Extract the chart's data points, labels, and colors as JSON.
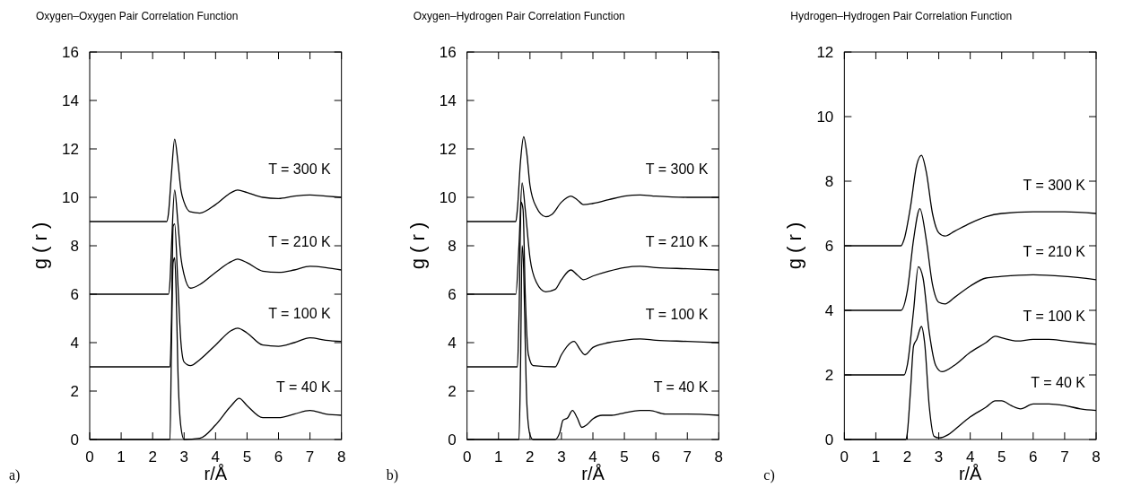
{
  "chart_data": [
    {
      "type": "line",
      "legend": "right",
      "title": "Oxygen–Oxygen Pair Correlation Function",
      "xlabel": "r/Å",
      "ylabel": "g ( r )",
      "annotations": [
        "a)"
      ],
      "xlim": [
        0,
        8
      ],
      "xticks": [
        0,
        1,
        2,
        3,
        4,
        5,
        6,
        7,
        8
      ],
      "ylim": [
        0,
        16
      ],
      "yticks": [
        0,
        2,
        4,
        6,
        8,
        10,
        12,
        14,
        16
      ],
      "series": [
        {
          "name": "T = 300 K",
          "color": "#000000",
          "x": [
            0,
            2.45,
            2.5,
            2.6,
            2.7,
            2.8,
            2.9,
            3.0,
            3.2,
            3.5,
            4.0,
            4.5,
            4.7,
            5.0,
            5.5,
            6.0,
            6.5,
            7.0,
            7.5,
            8.0
          ],
          "values": [
            9,
            9,
            9.3,
            11,
            12.4,
            11.5,
            10.3,
            9.8,
            9.4,
            9.35,
            9.7,
            10.2,
            10.3,
            10.2,
            10.0,
            9.95,
            10.05,
            10.1,
            10.05,
            10.0
          ]
        },
        {
          "name": "T = 210 K",
          "color": "#000000",
          "x": [
            0,
            2.5,
            2.55,
            2.6,
            2.7,
            2.8,
            2.9,
            3.0,
            3.2,
            3.5,
            4.0,
            4.5,
            4.7,
            5.0,
            5.5,
            6.0,
            6.5,
            7.0,
            7.5,
            8.0
          ],
          "values": [
            6,
            6,
            6.5,
            8,
            10.3,
            9,
            7.5,
            6.8,
            6.25,
            6.4,
            6.9,
            7.35,
            7.45,
            7.3,
            6.95,
            6.9,
            7.0,
            7.15,
            7.1,
            7.0
          ]
        },
        {
          "name": "T = 100 K",
          "color": "#000000",
          "x": [
            0,
            2.55,
            2.6,
            2.65,
            2.7,
            2.8,
            2.9,
            3.0,
            3.2,
            3.5,
            4.0,
            4.5,
            4.7,
            5.0,
            5.5,
            6.0,
            6.5,
            7.0,
            7.5,
            8.0
          ],
          "values": [
            3,
            3,
            5,
            8.8,
            8.9,
            6.5,
            4,
            3.2,
            3.05,
            3.3,
            3.9,
            4.5,
            4.6,
            4.4,
            3.9,
            3.85,
            4.0,
            4.2,
            4.1,
            4.05
          ]
        },
        {
          "name": "T = 40 K",
          "color": "#000000",
          "x": [
            0,
            2.55,
            2.6,
            2.65,
            2.7,
            2.75,
            2.8,
            2.9,
            3.0,
            3.5,
            4.0,
            4.5,
            4.75,
            5.0,
            5.5,
            6.0,
            6.5,
            7.0,
            7.5,
            8.0
          ],
          "values": [
            0,
            0,
            4,
            7.3,
            7.5,
            6,
            3,
            0.5,
            0,
            0.05,
            0.6,
            1.4,
            1.7,
            1.4,
            0.9,
            0.9,
            1.05,
            1.2,
            1.05,
            1.0
          ]
        }
      ]
    },
    {
      "type": "line",
      "legend": "right",
      "title": "Oxygen–Hydrogen Pair Correlation Function",
      "xlabel": "r/Å",
      "ylabel": "g ( r )",
      "annotations": [
        "b)"
      ],
      "xlim": [
        0,
        8
      ],
      "xticks": [
        0,
        1,
        2,
        3,
        4,
        5,
        6,
        7,
        8
      ],
      "ylim": [
        0,
        16
      ],
      "yticks": [
        0,
        2,
        4,
        6,
        8,
        10,
        12,
        14,
        16
      ],
      "series": [
        {
          "name": "T = 300 K",
          "color": "#000000",
          "x": [
            0,
            1.55,
            1.6,
            1.7,
            1.8,
            1.9,
            2.0,
            2.2,
            2.5,
            2.7,
            3.0,
            3.3,
            3.5,
            3.7,
            4.0,
            4.5,
            5.0,
            5.5,
            6.0,
            7.0,
            8.0
          ],
          "values": [
            9,
            9,
            9.5,
            11.5,
            12.5,
            11.8,
            10.5,
            9.6,
            9.2,
            9.3,
            9.8,
            10.05,
            9.9,
            9.7,
            9.75,
            9.9,
            10.05,
            10.1,
            10.05,
            10.0,
            10.0
          ]
        },
        {
          "name": "T = 210 K",
          "color": "#000000",
          "x": [
            0,
            1.55,
            1.65,
            1.75,
            1.85,
            2.0,
            2.2,
            2.5,
            2.8,
            3.0,
            3.3,
            3.5,
            3.7,
            4.0,
            4.5,
            5.0,
            5.5,
            6.0,
            7.0,
            8.0
          ],
          "values": [
            6,
            6,
            8,
            10.6,
            9.5,
            7.5,
            6.5,
            6.1,
            6.2,
            6.6,
            7.0,
            6.8,
            6.6,
            6.75,
            6.95,
            7.1,
            7.15,
            7.1,
            7.05,
            7.0
          ]
        },
        {
          "name": "T = 100 K",
          "color": "#000000",
          "x": [
            0,
            1.6,
            1.65,
            1.72,
            1.78,
            1.85,
            1.95,
            2.1,
            2.8,
            3.0,
            3.3,
            3.4,
            3.6,
            3.75,
            4.0,
            4.5,
            5.0,
            5.5,
            6.0,
            7.0,
            8.0
          ],
          "values": [
            3,
            3,
            5,
            9.8,
            9.5,
            6,
            3.5,
            3.05,
            3.0,
            3.5,
            4.0,
            4.05,
            3.7,
            3.5,
            3.8,
            4.0,
            4.1,
            4.15,
            4.1,
            4.05,
            4.0
          ]
        },
        {
          "name": "T = 40 K",
          "color": "#000000",
          "x": [
            0,
            1.65,
            1.7,
            1.75,
            1.8,
            1.85,
            1.9,
            2.0,
            2.1,
            2.8,
            2.95,
            3.05,
            3.2,
            3.35,
            3.5,
            3.65,
            3.8,
            4.0,
            4.3,
            4.6,
            5.0,
            5.5,
            5.8,
            6.3,
            7.0,
            8.0
          ],
          "values": [
            0,
            0,
            3,
            8,
            7,
            4,
            1.5,
            0.2,
            0,
            0,
            0.3,
            0.8,
            0.9,
            1.2,
            0.9,
            0.5,
            0.6,
            0.85,
            1.0,
            1.0,
            1.1,
            1.2,
            1.2,
            1.05,
            1.05,
            1.0
          ]
        }
      ]
    },
    {
      "type": "line",
      "legend": "right",
      "title": "Hydrogen–Hydrogen Pair Correlation Function",
      "xlabel": "r/Å",
      "ylabel": "g ( r )",
      "annotations": [
        "c)"
      ],
      "xlim": [
        0,
        8
      ],
      "xticks": [
        0,
        1,
        2,
        3,
        4,
        5,
        6,
        7,
        8
      ],
      "ylim": [
        0,
        12
      ],
      "yticks": [
        0,
        2,
        4,
        6,
        8,
        10,
        12
      ],
      "series": [
        {
          "name": "T = 300 K",
          "color": "#000000",
          "x": [
            0,
            1.8,
            1.9,
            2.1,
            2.3,
            2.45,
            2.6,
            2.8,
            3.0,
            3.2,
            3.5,
            4.0,
            4.5,
            5.0,
            6.0,
            7.0,
            8.0
          ],
          "values": [
            6,
            6,
            6.2,
            7.2,
            8.5,
            8.8,
            8.3,
            7.0,
            6.4,
            6.3,
            6.45,
            6.7,
            6.9,
            7.0,
            7.05,
            7.05,
            7.0
          ]
        },
        {
          "name": "T = 210 K",
          "color": "#000000",
          "x": [
            0,
            1.8,
            2.0,
            2.2,
            2.4,
            2.6,
            2.8,
            3.0,
            3.2,
            3.5,
            4.0,
            4.5,
            5.0,
            6.0,
            7.0,
            8.0
          ],
          "values": [
            4,
            4,
            4.6,
            6.2,
            7.15,
            6.2,
            4.8,
            4.25,
            4.2,
            4.4,
            4.75,
            5.0,
            5.05,
            5.1,
            5.05,
            4.95
          ]
        },
        {
          "name": "T = 100 K",
          "color": "#000000",
          "x": [
            0,
            1.9,
            2.0,
            2.2,
            2.35,
            2.5,
            2.7,
            2.9,
            3.1,
            3.5,
            4.0,
            4.5,
            4.8,
            5.0,
            5.5,
            6.0,
            6.5,
            7.0,
            7.5,
            8.0
          ],
          "values": [
            2,
            2,
            2.3,
            4,
            5.35,
            5.0,
            3.3,
            2.3,
            2.1,
            2.3,
            2.7,
            3.0,
            3.2,
            3.15,
            3.05,
            3.1,
            3.1,
            3.05,
            3.0,
            2.95
          ]
        },
        {
          "name": "T = 40 K",
          "color": "#000000",
          "x": [
            0,
            1.95,
            2.0,
            2.1,
            2.2,
            2.3,
            2.45,
            2.55,
            2.7,
            2.85,
            3.0,
            3.3,
            3.5,
            4.0,
            4.5,
            4.8,
            5.0,
            5.3,
            5.6,
            6.0,
            6.5,
            7.0,
            7.5,
            8.0
          ],
          "values": [
            0,
            0,
            0.2,
            1.5,
            2.9,
            3.1,
            3.5,
            3.0,
            1.0,
            0.1,
            0.05,
            0.15,
            0.3,
            0.7,
            1.0,
            1.2,
            1.2,
            1.05,
            0.95,
            1.1,
            1.1,
            1.05,
            0.95,
            0.9
          ]
        }
      ]
    }
  ]
}
